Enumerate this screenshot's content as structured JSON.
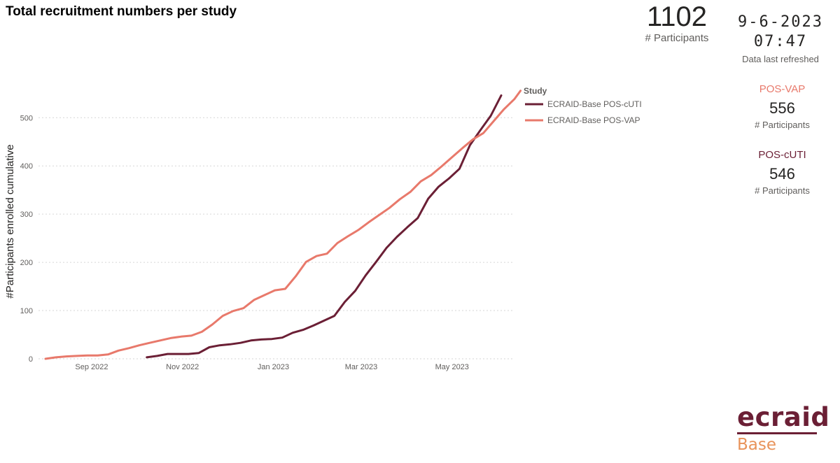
{
  "title": "Total recruitment numbers per study",
  "kpi": {
    "total_value": "1102",
    "total_label": "# Participants",
    "refresh_value": "9-6-2023 07:47",
    "refresh_label": "Data last refreshed"
  },
  "study_cards": [
    {
      "name": "POS-VAP",
      "value": "556",
      "label": "# Participants",
      "color": "#e8796b"
    },
    {
      "name": "POS-cUTI",
      "value": "546",
      "label": "# Participants",
      "color": "#6b1f35"
    }
  ],
  "logo": {
    "brand": "ecraid",
    "sub": "Base",
    "brand_color": "#6b1f35",
    "sub_color": "#e8935a"
  },
  "chart_data": {
    "type": "line",
    "title": "",
    "xlabel": "",
    "ylabel": "#Participants enrolled cumulative",
    "ylim": [
      0,
      570
    ],
    "yticks": [
      0,
      100,
      200,
      300,
      400,
      500
    ],
    "xlim": [
      "2022-08-01",
      "2023-06-11"
    ],
    "xticks": [
      {
        "date": "2022-09-01",
        "label": "Sep 2022"
      },
      {
        "date": "2022-11-01",
        "label": "Nov 2022"
      },
      {
        "date": "2023-01-01",
        "label": "Jan 2023"
      },
      {
        "date": "2023-03-01",
        "label": "Mar 2023"
      },
      {
        "date": "2023-05-01",
        "label": "May 2023"
      }
    ],
    "grid": true,
    "legend": {
      "title": "Study",
      "position": "right"
    },
    "series": [
      {
        "name": "ECRAID-Base POS-cUTI",
        "color": "#6b1f35",
        "points": [
          [
            "2022-10-08",
            3
          ],
          [
            "2022-10-15",
            6
          ],
          [
            "2022-10-22",
            10
          ],
          [
            "2022-10-29",
            10
          ],
          [
            "2022-11-05",
            10
          ],
          [
            "2022-11-12",
            12
          ],
          [
            "2022-11-19",
            24
          ],
          [
            "2022-11-26",
            28
          ],
          [
            "2022-12-03",
            30
          ],
          [
            "2022-12-10",
            33
          ],
          [
            "2022-12-17",
            38
          ],
          [
            "2022-12-24",
            40
          ],
          [
            "2022-12-31",
            41
          ],
          [
            "2023-01-07",
            44
          ],
          [
            "2023-01-14",
            54
          ],
          [
            "2023-01-21",
            60
          ],
          [
            "2023-01-28",
            69
          ],
          [
            "2023-02-04",
            79
          ],
          [
            "2023-02-11",
            89
          ],
          [
            "2023-02-18",
            118
          ],
          [
            "2023-02-25",
            141
          ],
          [
            "2023-03-04",
            173
          ],
          [
            "2023-03-11",
            201
          ],
          [
            "2023-03-18",
            230
          ],
          [
            "2023-03-25",
            253
          ],
          [
            "2023-04-01",
            273
          ],
          [
            "2023-04-08",
            292
          ],
          [
            "2023-04-15",
            332
          ],
          [
            "2023-04-22",
            357
          ],
          [
            "2023-04-29",
            374
          ],
          [
            "2023-05-06",
            394
          ],
          [
            "2023-05-13",
            443
          ],
          [
            "2023-05-20",
            474
          ],
          [
            "2023-05-27",
            504
          ],
          [
            "2023-06-03",
            546
          ]
        ]
      },
      {
        "name": "ECRAID-Base POS-VAP",
        "color": "#e8796b",
        "points": [
          [
            "2022-08-01",
            0
          ],
          [
            "2022-08-08",
            3
          ],
          [
            "2022-08-15",
            5
          ],
          [
            "2022-08-22",
            6
          ],
          [
            "2022-08-29",
            7
          ],
          [
            "2022-09-05",
            7
          ],
          [
            "2022-09-12",
            9
          ],
          [
            "2022-09-19",
            17
          ],
          [
            "2022-09-26",
            22
          ],
          [
            "2022-10-03",
            28
          ],
          [
            "2022-10-10",
            33
          ],
          [
            "2022-10-17",
            38
          ],
          [
            "2022-10-24",
            43
          ],
          [
            "2022-10-31",
            46
          ],
          [
            "2022-11-07",
            48
          ],
          [
            "2022-11-14",
            56
          ],
          [
            "2022-11-21",
            71
          ],
          [
            "2022-11-28",
            89
          ],
          [
            "2022-12-05",
            99
          ],
          [
            "2022-12-12",
            105
          ],
          [
            "2022-12-19",
            122
          ],
          [
            "2022-12-26",
            132
          ],
          [
            "2023-01-02",
            142
          ],
          [
            "2023-01-09",
            145
          ],
          [
            "2023-01-16",
            171
          ],
          [
            "2023-01-23",
            201
          ],
          [
            "2023-01-30",
            213
          ],
          [
            "2023-02-06",
            218
          ],
          [
            "2023-02-13",
            240
          ],
          [
            "2023-02-20",
            254
          ],
          [
            "2023-02-27",
            267
          ],
          [
            "2023-03-06",
            283
          ],
          [
            "2023-03-13",
            298
          ],
          [
            "2023-03-20",
            313
          ],
          [
            "2023-03-27",
            331
          ],
          [
            "2023-04-03",
            346
          ],
          [
            "2023-04-10",
            368
          ],
          [
            "2023-04-17",
            381
          ],
          [
            "2023-04-24",
            399
          ],
          [
            "2023-05-01",
            418
          ],
          [
            "2023-05-08",
            437
          ],
          [
            "2023-05-15",
            455
          ],
          [
            "2023-05-22",
            468
          ],
          [
            "2023-05-29",
            493
          ],
          [
            "2023-06-05",
            518
          ],
          [
            "2023-06-12",
            539
          ],
          [
            "2023-06-16",
            556
          ]
        ]
      }
    ]
  }
}
